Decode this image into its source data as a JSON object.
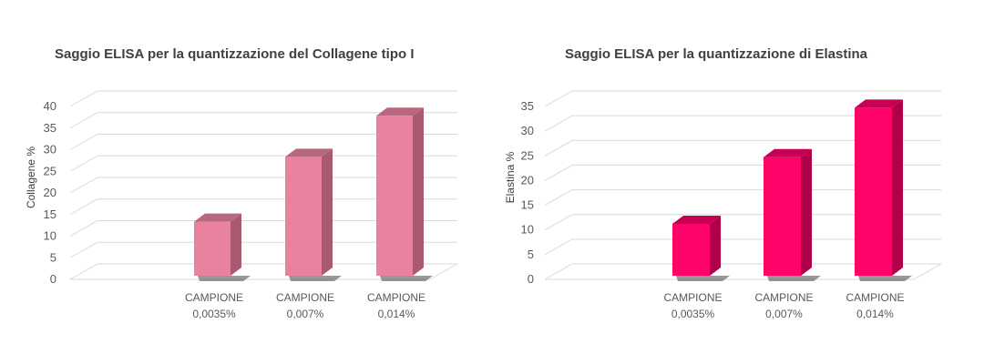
{
  "chart_data": [
    {
      "type": "bar",
      "title": "Saggio ELISA per la quantizzazione del Collagene tipo I",
      "ylabel": "Collagene %",
      "xlabel": "",
      "categories": [
        [
          "CAMPIONE",
          "0,0035%"
        ],
        [
          "CAMPIONE",
          "0,007%"
        ],
        [
          "CAMPIONE",
          "0,014%"
        ]
      ],
      "values": [
        12.5,
        27.5,
        37
      ],
      "ylim": [
        0,
        40
      ],
      "yticks": [
        0,
        5,
        10,
        15,
        20,
        25,
        30,
        35,
        40
      ],
      "grid": true,
      "legend": "none",
      "three_d": true,
      "colors": {
        "front": "#e8829f",
        "side": "#a95a70",
        "top": "#b8687e",
        "shadow": "#444444"
      }
    },
    {
      "type": "bar",
      "title": "Saggio ELISA per la quantizzazione di Elastina",
      "ylabel": "Elastina %",
      "xlabel": "",
      "categories": [
        [
          "CAMPIONE",
          "0,0035%"
        ],
        [
          "CAMPIONE",
          "0,007%"
        ],
        [
          "CAMPIONE",
          "0,014%"
        ]
      ],
      "values": [
        10.5,
        24,
        34
      ],
      "ylim": [
        0,
        35
      ],
      "yticks": [
        0,
        5,
        10,
        15,
        20,
        25,
        30,
        35
      ],
      "grid": true,
      "legend": "none",
      "three_d": true,
      "colors": {
        "front": "#fe0468",
        "side": "#b0004a",
        "top": "#c70053",
        "shadow": "#444444"
      }
    }
  ]
}
